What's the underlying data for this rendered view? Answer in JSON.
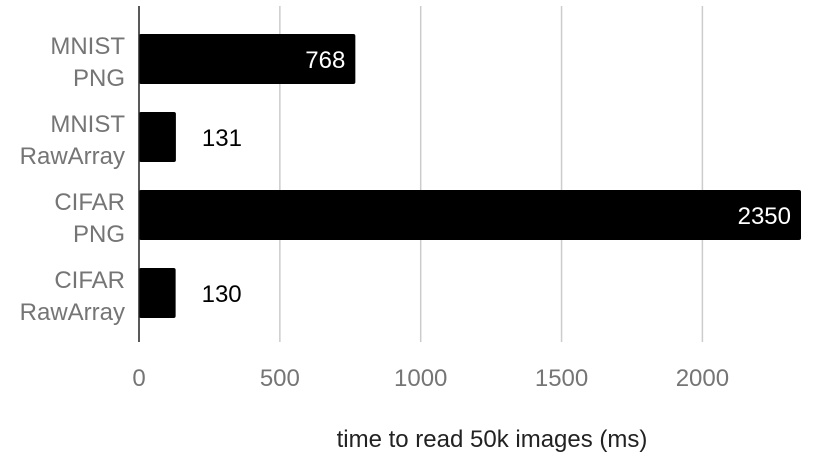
{
  "chart_data": {
    "type": "bar",
    "orientation": "horizontal",
    "categories": [
      [
        "MNIST",
        "PNG"
      ],
      [
        "MNIST",
        "RawArray"
      ],
      [
        "CIFAR",
        "PNG"
      ],
      [
        "CIFAR",
        "RawArray"
      ]
    ],
    "values": [
      768,
      131,
      2350,
      130
    ],
    "xlabel": "time to read 50k images (ms)",
    "ylabel": "",
    "xlim": [
      0,
      2350
    ],
    "xticks": [
      0,
      500,
      1000,
      1500,
      2000
    ],
    "grid": true,
    "legend": "none",
    "colors": {
      "bar": "#000000",
      "grid": "#cccccc",
      "axis": "#222222",
      "label_inside": "#ffffff",
      "label_outside": "#000000",
      "category_text": "#757575",
      "tick_text": "#757575",
      "title_text": "#222222"
    }
  }
}
